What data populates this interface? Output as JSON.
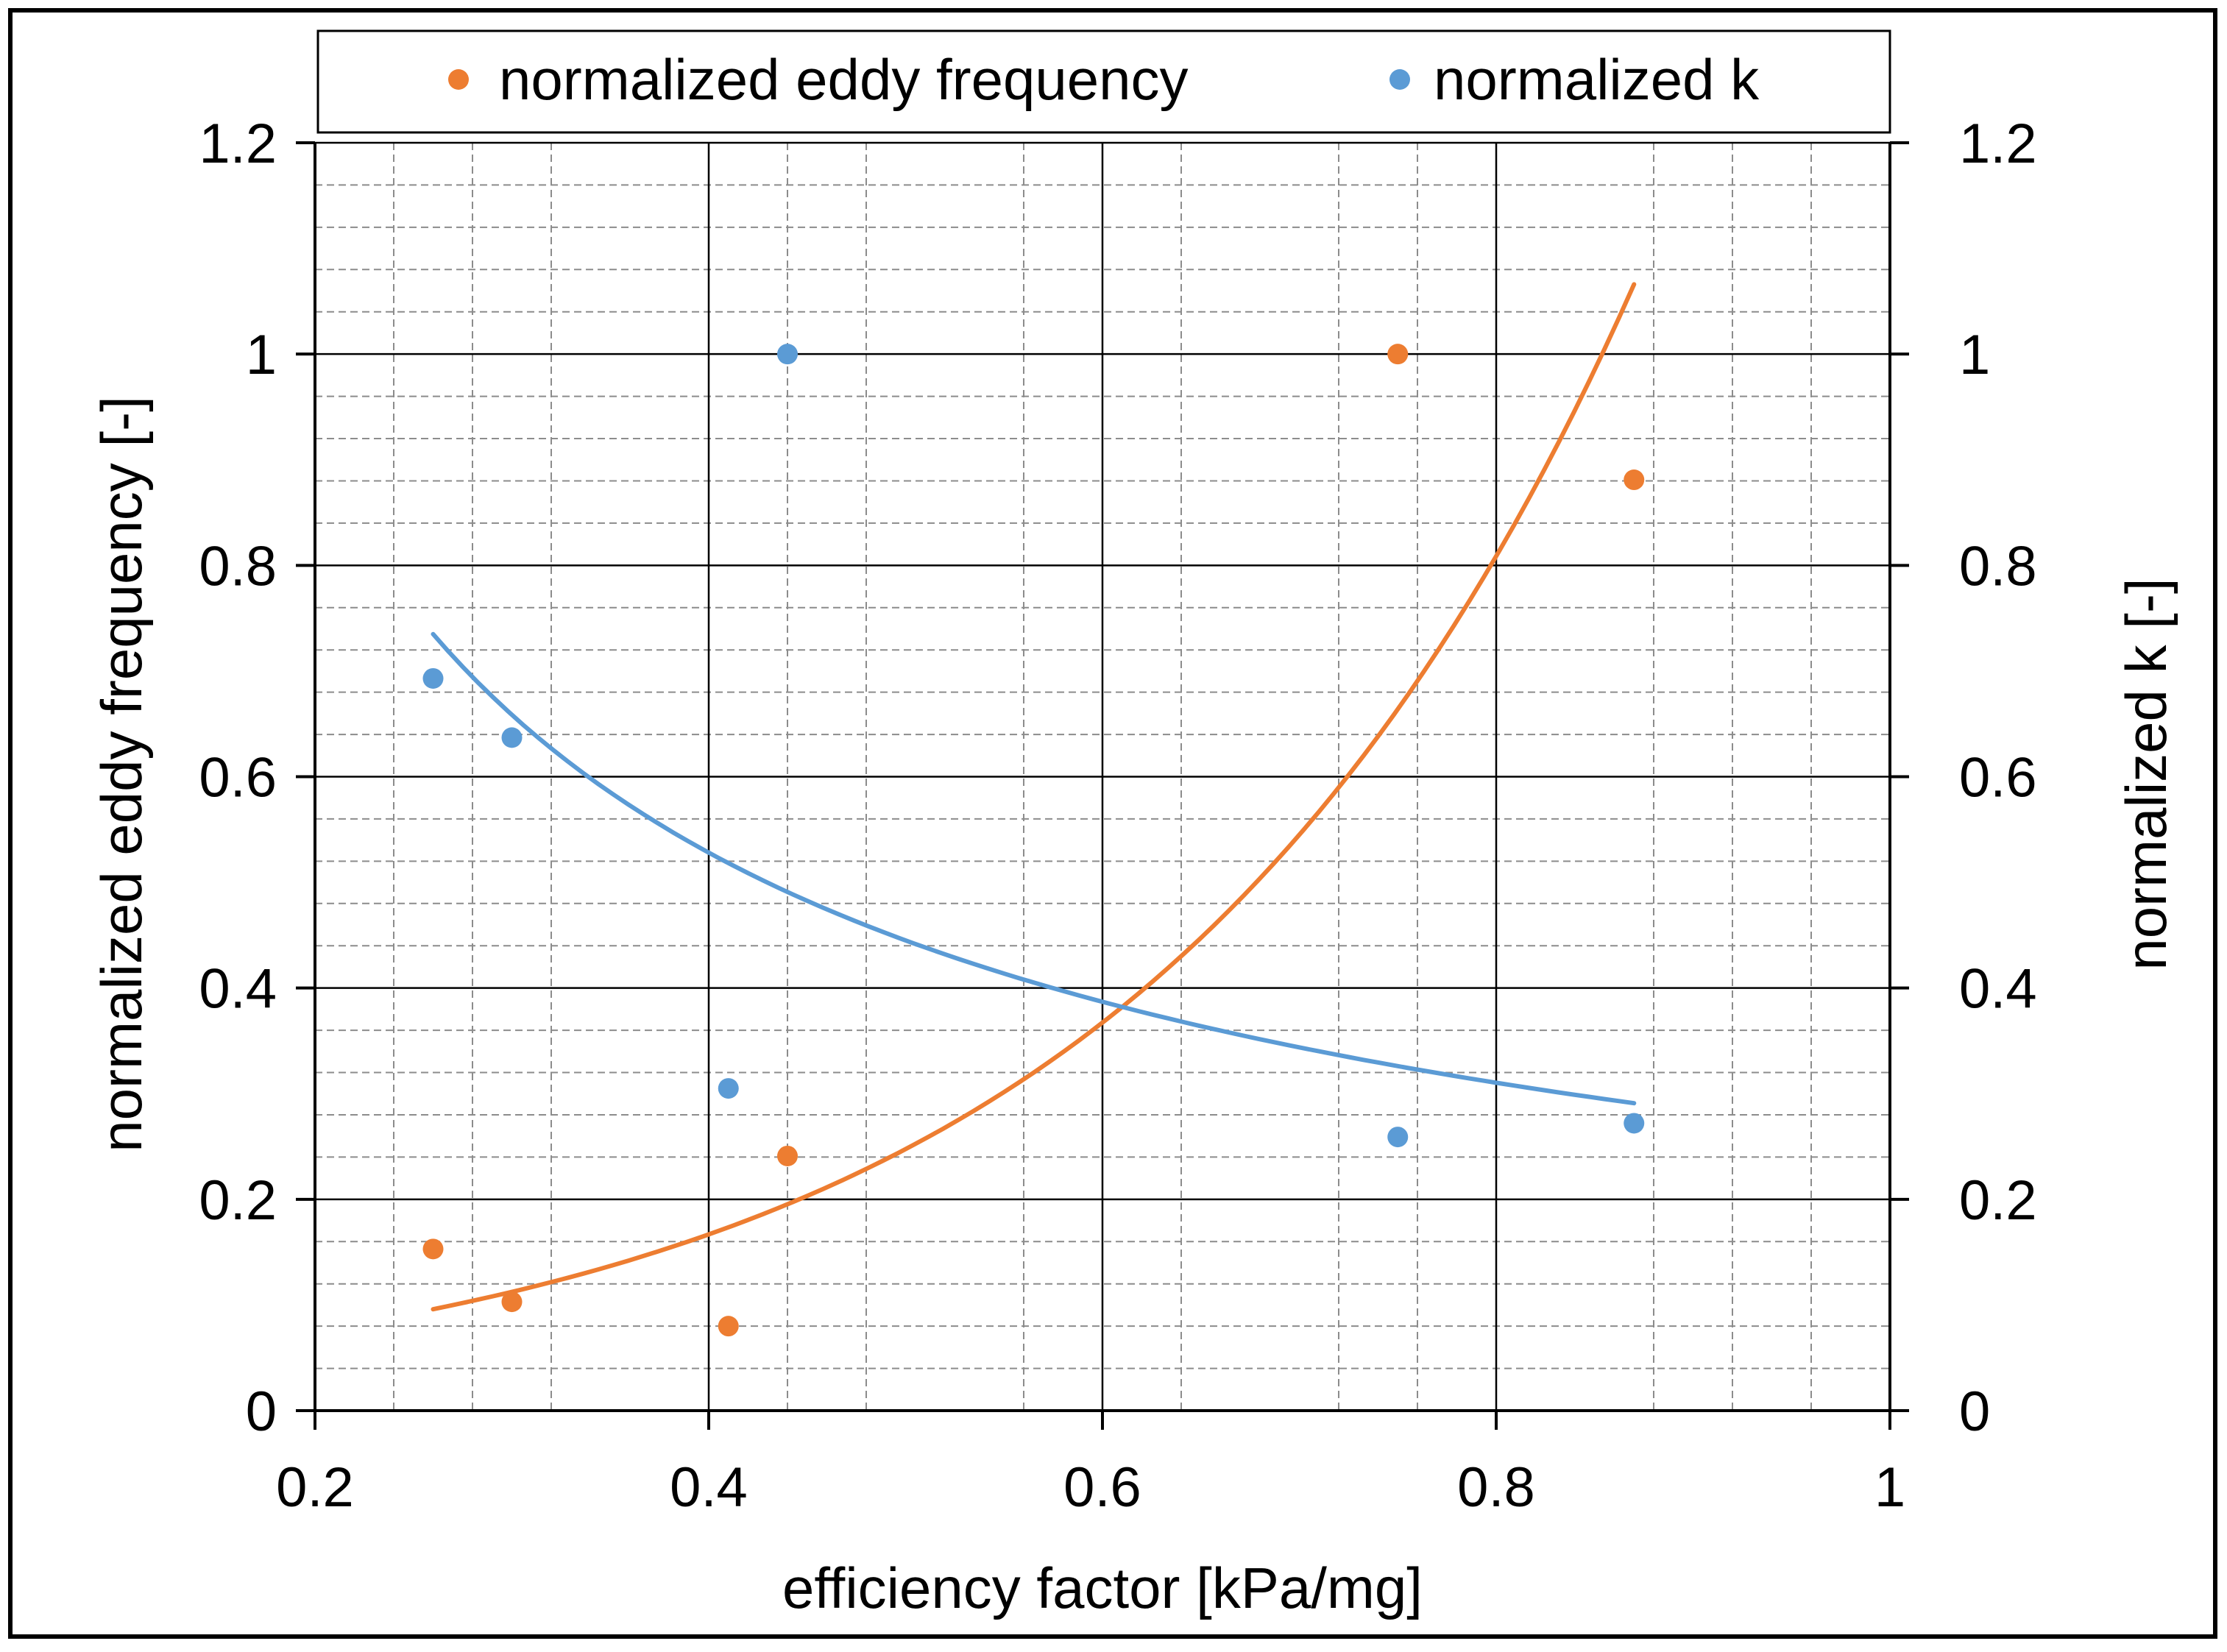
{
  "chart_data": {
    "type": "scatter",
    "title": "",
    "xlabel": "efficiency factor [kPa/mg]",
    "ylabel": "normalized eddy frequency [-]",
    "y2label": "normalized k [-]",
    "xlim": [
      0.2,
      1.0
    ],
    "ylim": [
      0,
      1.2
    ],
    "y2lim": [
      0,
      1.2
    ],
    "x_ticks": [
      "0.2",
      "0.4",
      "0.6",
      "0.8",
      "1"
    ],
    "y_ticks": [
      "0",
      "0.2",
      "0.4",
      "0.6",
      "0.8",
      "1",
      "1.2"
    ],
    "y2_ticks": [
      "0",
      "0.2",
      "0.4",
      "0.6",
      "0.8",
      "1",
      "1.2"
    ],
    "grid": true,
    "legend_position": "top",
    "series": [
      {
        "name": "normalized eddy frequency",
        "color": "#ED7D31",
        "axis": "left",
        "points": [
          {
            "x": 0.26,
            "y": 0.153
          },
          {
            "x": 0.3,
            "y": 0.103
          },
          {
            "x": 0.41,
            "y": 0.08
          },
          {
            "x": 0.44,
            "y": 0.241
          },
          {
            "x": 0.75,
            "y": 1.0
          },
          {
            "x": 0.87,
            "y": 0.881
          }
        ],
        "trendline": {
          "type": "exponential",
          "x": [
            0.26,
            0.87
          ],
          "y": [
            0.096,
            1.066
          ]
        }
      },
      {
        "name": "normalized k",
        "color": "#5B9BD5",
        "axis": "right",
        "points": [
          {
            "x": 0.26,
            "y": 0.693
          },
          {
            "x": 0.3,
            "y": 0.637
          },
          {
            "x": 0.41,
            "y": 0.305
          },
          {
            "x": 0.44,
            "y": 1.0
          },
          {
            "x": 0.75,
            "y": 0.259
          },
          {
            "x": 0.87,
            "y": 0.272
          }
        ],
        "trendline": {
          "type": "power",
          "x": [
            0.26,
            0.87
          ],
          "y": [
            0.735,
            0.291
          ]
        }
      }
    ]
  }
}
